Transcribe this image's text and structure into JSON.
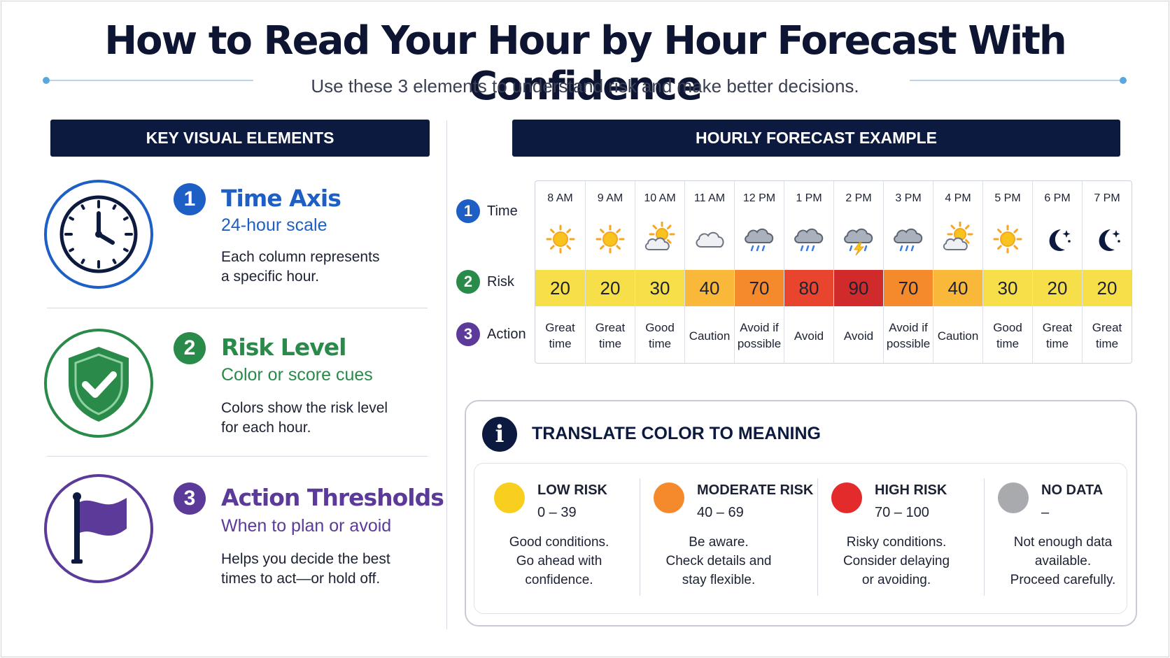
{
  "title": "How to Read Your Hour by Hour Forecast With Confidence",
  "subtitle": "Use these 3 elements to understand risk and make better decisions.",
  "left_panel": {
    "header": "KEY VISUAL ELEMENTS",
    "elements": [
      {
        "number": "1",
        "title": "Time Axis",
        "subtitle": "24-hour scale",
        "desc_lines": [
          "Each column represents",
          "a specific hour."
        ],
        "icon": "clock-icon",
        "color": "#1d5fc4"
      },
      {
        "number": "2",
        "title": "Risk Level",
        "subtitle": "Color or score cues",
        "desc_lines": [
          "Colors show the risk level",
          "for each hour."
        ],
        "icon": "shield-check-icon",
        "color": "#2a8a4a"
      },
      {
        "number": "3",
        "title": "Action Thresholds",
        "subtitle": "When to plan or avoid",
        "desc_lines": [
          "Helps you decide the best",
          "times to act—or hold off."
        ],
        "icon": "flag-icon",
        "color": "#5b3a9a"
      }
    ]
  },
  "right_panel": {
    "header": "HOURLY FORECAST EXAMPLE",
    "row_labels": [
      {
        "number": "1",
        "label": "Time",
        "color": "#1d5fc4"
      },
      {
        "number": "2",
        "label": "Risk",
        "color": "#2a8a4a"
      },
      {
        "number": "3",
        "label": "Action",
        "color": "#5b3a9a"
      }
    ],
    "hours": [
      {
        "time": "8 AM",
        "icon": "sun-icon",
        "risk": 20,
        "color": "#f7df4a",
        "action": [
          "Great",
          "time"
        ]
      },
      {
        "time": "9 AM",
        "icon": "sun-icon",
        "risk": 20,
        "color": "#f7df4a",
        "action": [
          "Great",
          "time"
        ]
      },
      {
        "time": "10 AM",
        "icon": "partly-cloudy-icon",
        "risk": 30,
        "color": "#f7df4a",
        "action": [
          "Good",
          "time"
        ]
      },
      {
        "time": "11 AM",
        "icon": "cloud-icon",
        "risk": 40,
        "color": "#f9b83a",
        "action": [
          "Caution"
        ]
      },
      {
        "time": "12 PM",
        "icon": "rain-icon",
        "risk": 70,
        "color": "#f58a2c",
        "action": [
          "Avoid if",
          "possible"
        ]
      },
      {
        "time": "1 PM",
        "icon": "rain-icon",
        "risk": 80,
        "color": "#e9442e",
        "action": [
          "Avoid"
        ]
      },
      {
        "time": "2 PM",
        "icon": "thunderstorm-icon",
        "risk": 90,
        "color": "#d12a2a",
        "action": [
          "Avoid"
        ]
      },
      {
        "time": "3 PM",
        "icon": "rain-icon",
        "risk": 70,
        "color": "#f58a2c",
        "action": [
          "Avoid if",
          "possible"
        ]
      },
      {
        "time": "4 PM",
        "icon": "partly-cloudy-icon",
        "risk": 40,
        "color": "#f9b83a",
        "action": [
          "Caution"
        ]
      },
      {
        "time": "5 PM",
        "icon": "sun-icon",
        "risk": 30,
        "color": "#f7df4a",
        "action": [
          "Good",
          "time"
        ]
      },
      {
        "time": "6 PM",
        "icon": "moon-icon",
        "risk": 20,
        "color": "#f7df4a",
        "action": [
          "Great",
          "time"
        ]
      },
      {
        "time": "7 PM",
        "icon": "moon-icon",
        "risk": 20,
        "color": "#f7df4a",
        "action": [
          "Great",
          "time"
        ]
      }
    ]
  },
  "legend": {
    "title": "TRANSLATE COLOR TO MEANING",
    "items": [
      {
        "name": "LOW RISK",
        "range": "0 – 39",
        "color": "#f8cf1e",
        "desc_lines": [
          "Good conditions.",
          "Go ahead with",
          "confidence."
        ]
      },
      {
        "name": "MODERATE RISK",
        "range": "40 – 69",
        "color": "#f58a2c",
        "desc_lines": [
          "Be aware.",
          "Check details and",
          "stay flexible."
        ]
      },
      {
        "name": "HIGH RISK",
        "range": "70 – 100",
        "color": "#e32b2b",
        "desc_lines": [
          "Risky conditions.",
          "Consider delaying",
          "or avoiding."
        ]
      },
      {
        "name": "NO DATA",
        "range": "–",
        "color": "#a8aaad",
        "desc_lines": [
          "Not enough data",
          "available.",
          "Proceed carefully."
        ]
      }
    ]
  }
}
